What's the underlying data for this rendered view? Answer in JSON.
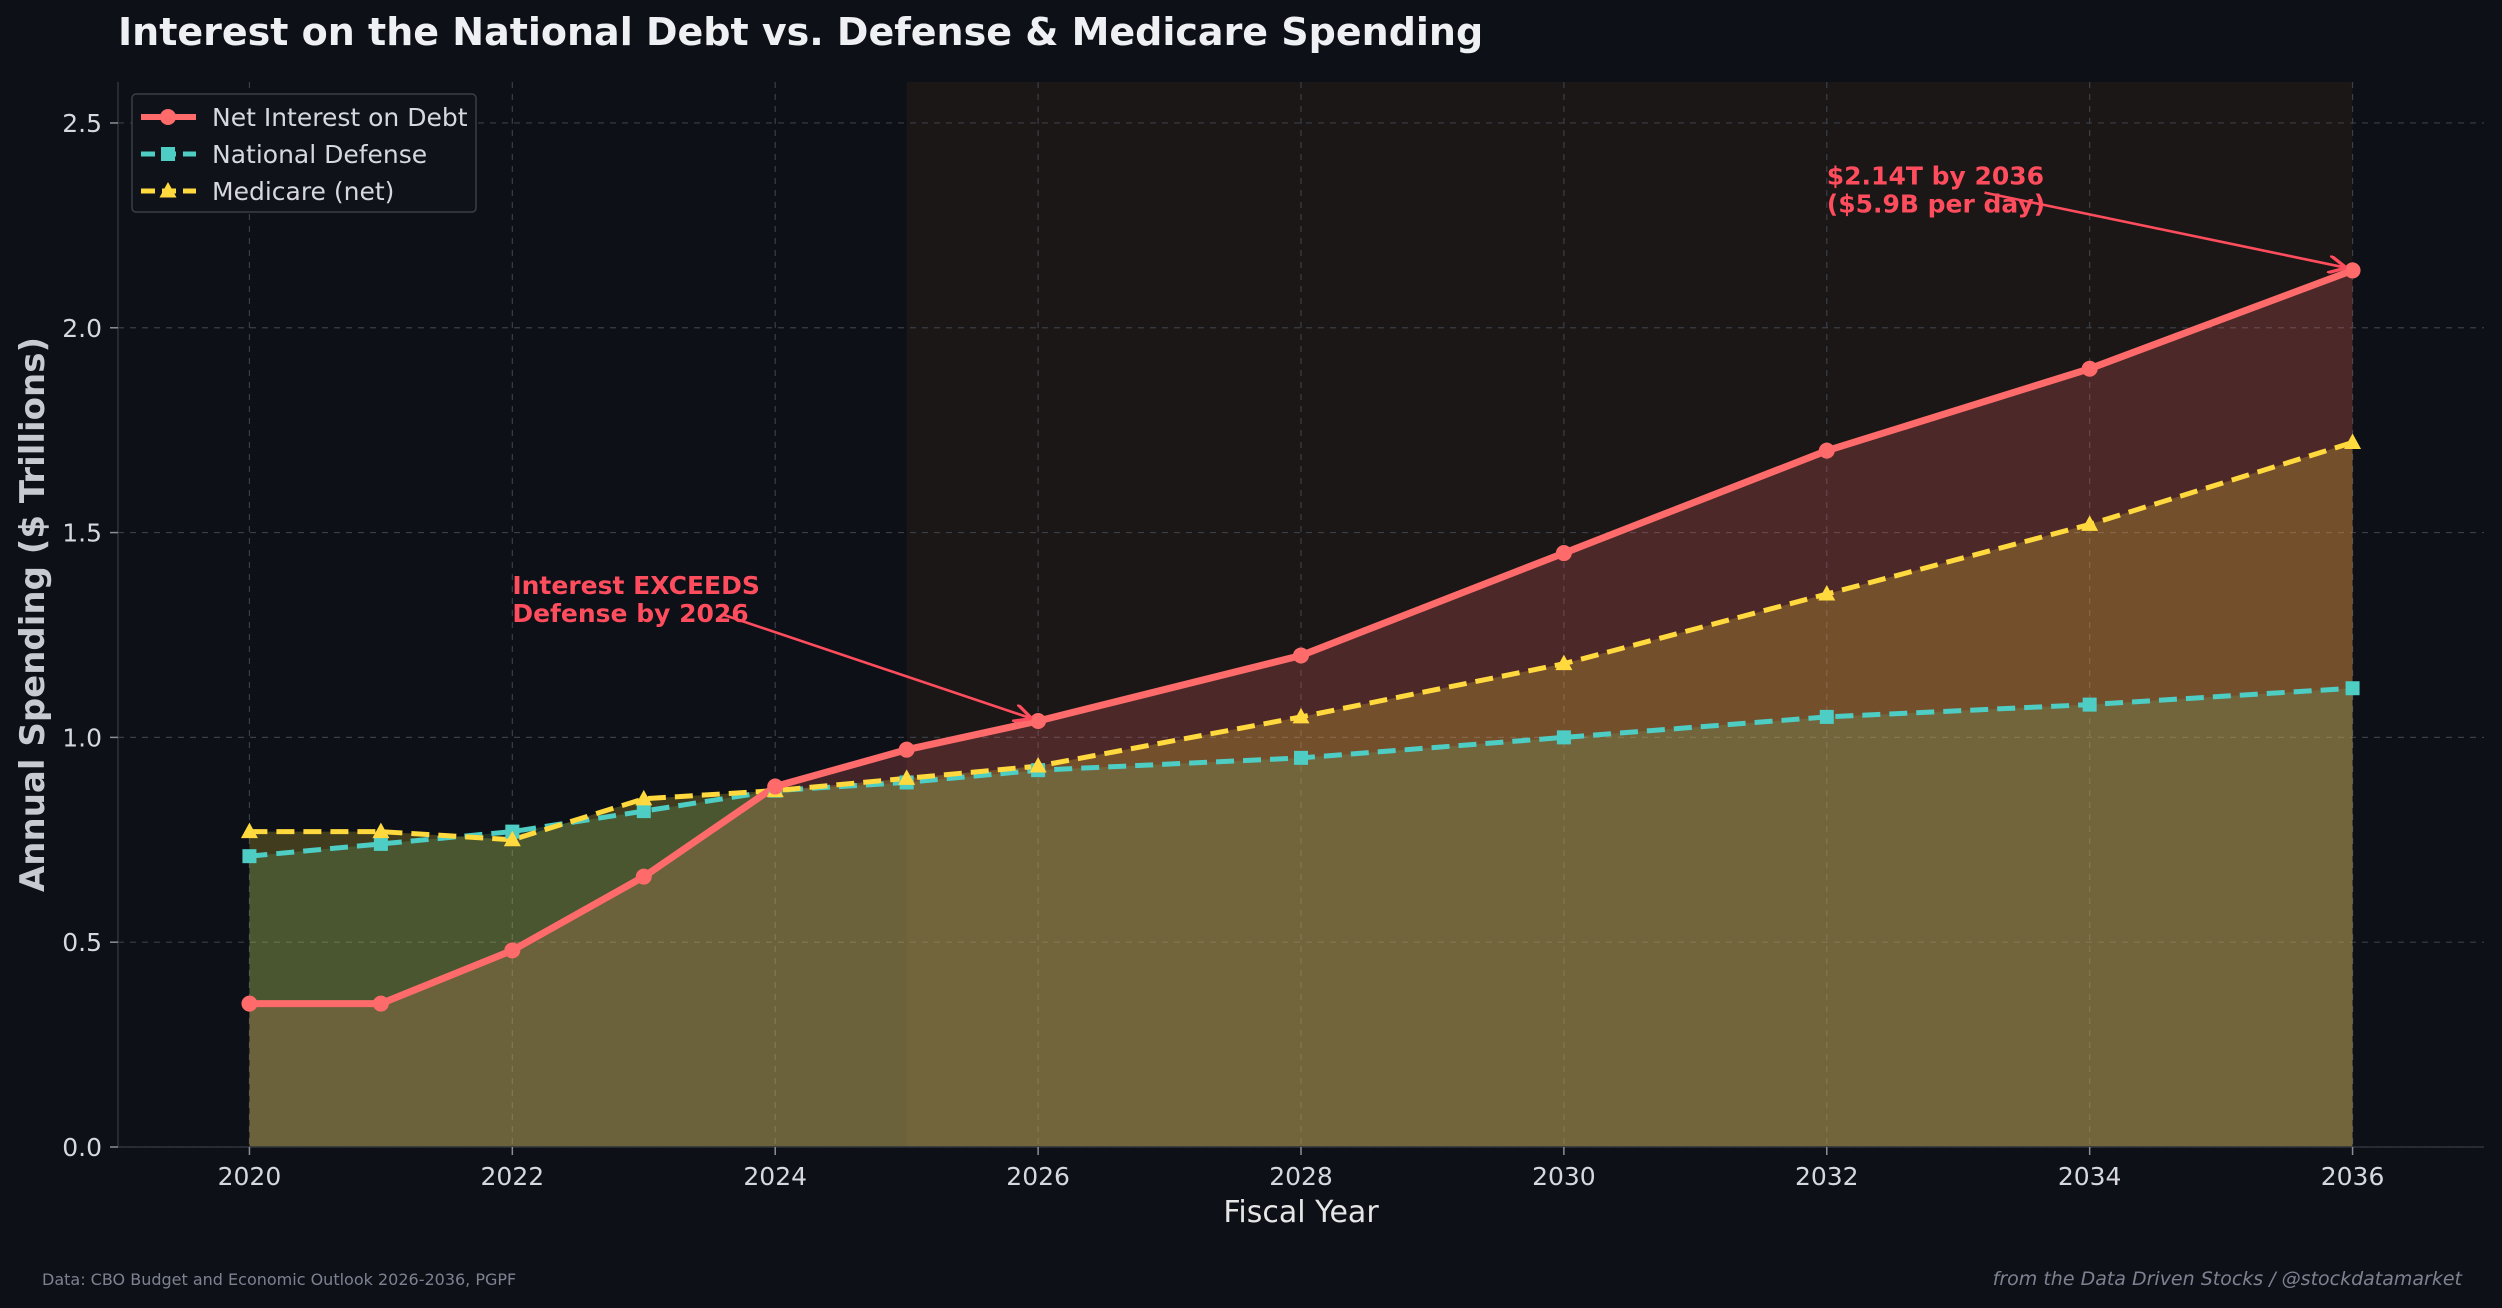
{
  "chart_data": {
    "type": "line",
    "title": "Interest on the National Debt vs. Defense & Medicare Spending",
    "xlabel": "Fiscal Year",
    "ylabel": "Annual Spending ($ Trillions)",
    "xlim": [
      2019,
      2037
    ],
    "ylim": [
      0,
      2.6
    ],
    "xticks": [
      2020,
      2022,
      2024,
      2026,
      2028,
      2030,
      2032,
      2034,
      2036
    ],
    "yticks": [
      0.0,
      0.5,
      1.0,
      1.5,
      2.0,
      2.5
    ],
    "ytick_labels": [
      "0.0",
      "0.5",
      "1.0",
      "1.5",
      "2.0",
      "2.5"
    ],
    "grid": true,
    "legend_position": "top-left",
    "projection_start": 2025,
    "series": [
      {
        "name": "Net Interest on Debt",
        "color": "#ff6b6b",
        "marker": "circle",
        "style": "solid",
        "x": [
          2020,
          2021,
          2022,
          2023,
          2024,
          2025,
          2026,
          2028,
          2030,
          2032,
          2034,
          2036
        ],
        "values": [
          0.35,
          0.35,
          0.48,
          0.66,
          0.88,
          0.97,
          1.04,
          1.2,
          1.45,
          1.7,
          1.9,
          2.14
        ]
      },
      {
        "name": "National Defense",
        "color": "#4ecdc4",
        "marker": "square",
        "style": "dashed",
        "x": [
          2020,
          2021,
          2022,
          2023,
          2024,
          2025,
          2026,
          2028,
          2030,
          2032,
          2034,
          2036
        ],
        "values": [
          0.71,
          0.74,
          0.77,
          0.82,
          0.87,
          0.89,
          0.92,
          0.95,
          1.0,
          1.05,
          1.08,
          1.12
        ]
      },
      {
        "name": "Medicare (net)",
        "color": "#ffd93d",
        "marker": "triangle",
        "style": "dashed",
        "x": [
          2020,
          2021,
          2022,
          2023,
          2024,
          2025,
          2026,
          2028,
          2030,
          2032,
          2034,
          2036
        ],
        "values": [
          0.77,
          0.77,
          0.75,
          0.85,
          0.87,
          0.9,
          0.93,
          1.05,
          1.18,
          1.35,
          1.52,
          1.72
        ]
      }
    ],
    "annotations": [
      {
        "lines": [
          "Interest EXCEEDS",
          "Defense by 2026"
        ],
        "color": "#ff4d5e",
        "text_x": 2022,
        "text_y": 1.35,
        "point_x": 2026,
        "point_y": 1.04
      },
      {
        "lines": [
          "$2.14T by 2036",
          "($5.9B per day)"
        ],
        "color": "#ff4d5e",
        "text_x": 2032,
        "text_y": 2.35,
        "point_x": 2036,
        "point_y": 2.14
      }
    ]
  },
  "footer": {
    "source": "Data: CBO Budget and Economic Outlook 2026-2036, PGPF",
    "credit": "from the Data Driven Stocks / @stockdatamarket"
  }
}
